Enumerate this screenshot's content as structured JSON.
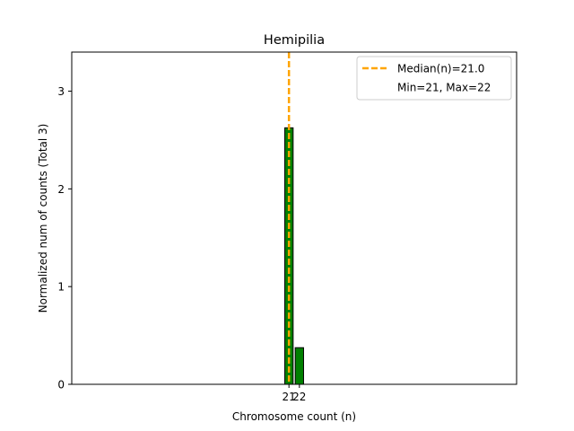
{
  "chart_data": {
    "type": "bar",
    "title": "Hemipilia",
    "xlabel": "Chromosome count (n)",
    "ylabel": "Normalized num of counts     (Total 3)",
    "x": [
      21,
      22
    ],
    "values": [
      2.625,
      0.375
    ],
    "xlim": [
      0.2,
      42.8
    ],
    "ylim": [
      0,
      3.4
    ],
    "yticks": [
      0,
      1,
      2,
      3
    ],
    "xticks": [
      21,
      22
    ],
    "bar_color": "#008000",
    "bar_edge_color": "#000000",
    "median_line": {
      "x": 21,
      "color": "#ffa500"
    },
    "legend": {
      "position": "top-right",
      "entries": [
        "Median(n)=21.0",
        "Min=21, Max=22"
      ]
    },
    "grid": false
  }
}
